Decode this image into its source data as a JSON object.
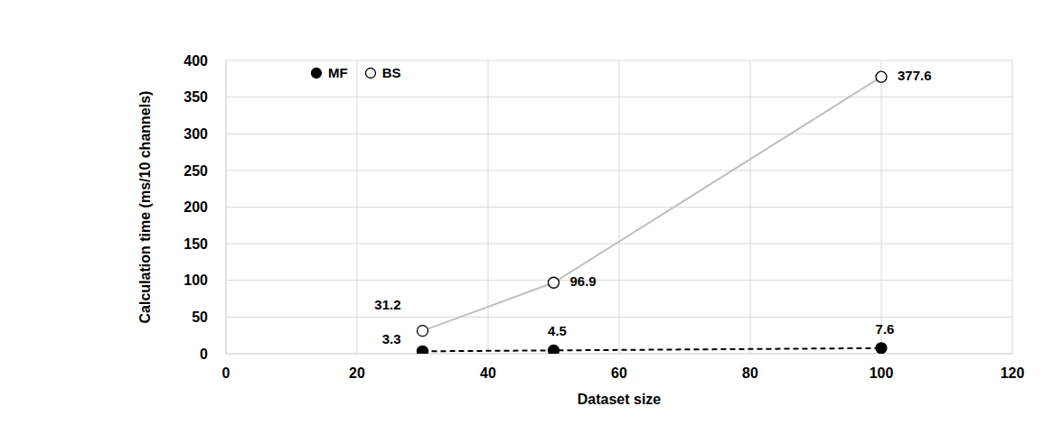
{
  "chart_data": {
    "type": "scatter",
    "x_label": "Dataset size",
    "y_label": "Calculation time (ms/10 channels)",
    "xlim": [
      0,
      120
    ],
    "xticks": [
      0,
      20,
      40,
      60,
      80,
      100,
      120
    ],
    "ylim": [
      0,
      400
    ],
    "yticks": [
      0,
      50,
      100,
      150,
      200,
      250,
      300,
      350,
      400
    ],
    "grid": true,
    "legend": "top left",
    "data_labels": true,
    "x": [
      30,
      50,
      100
    ],
    "series": [
      {
        "name": "MF",
        "color": "#000000",
        "marker": "filled_circle",
        "line_style": "dashed",
        "values": [
          3.3,
          4.5,
          7.6
        ]
      },
      {
        "name": "BS",
        "color": "#000000",
        "marker": "open_circle",
        "line_style": "solid",
        "values": [
          31.2,
          96.9,
          377.6
        ]
      }
    ]
  }
}
